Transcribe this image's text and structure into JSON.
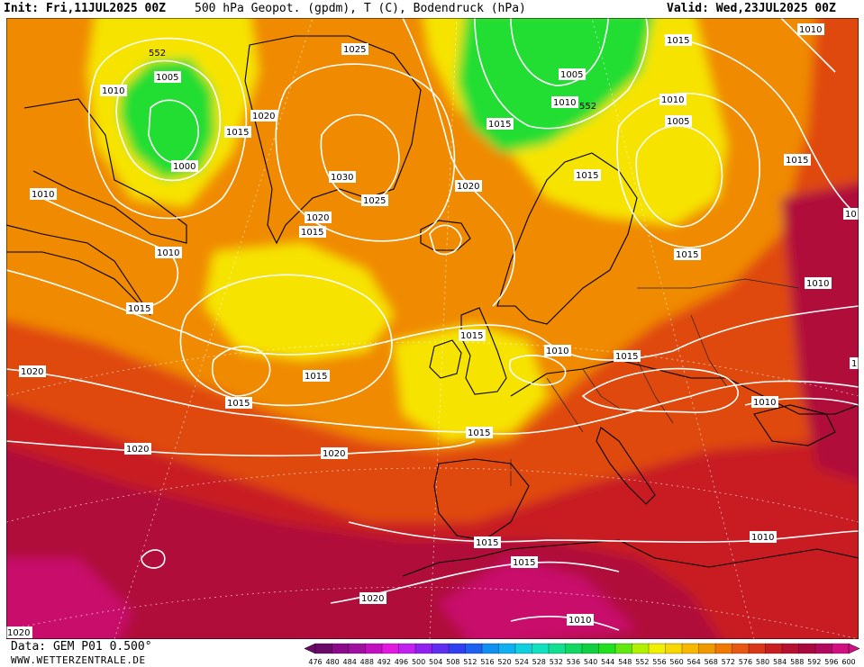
{
  "header": {
    "init": "Init: Fri,11JUL2025 00Z",
    "title": "500 hPa Geopot. (gpdm), T (C), Bodendruck (hPa)",
    "valid": "Valid: Wed,23JUL2025 00Z"
  },
  "footer": {
    "data_source": "Data: GEM P01 0.500°",
    "website": "WWW.WETTERZENTRALE.DE"
  },
  "colors": {
    "green": "#22dd33",
    "yellow": "#f6e400",
    "orange": "#f08a00",
    "red_orange": "#e04a10",
    "red": "#c81a24",
    "crimson": "#b0103a",
    "magenta": "#c8106a"
  },
  "isobars": [
    {
      "text": "1025"
    },
    {
      "text": "1015"
    },
    {
      "text": "1010"
    },
    {
      "text": "1010"
    },
    {
      "text": "1005"
    },
    {
      "text": "1020"
    },
    {
      "text": "1015"
    },
    {
      "text": "1000"
    },
    {
      "text": "1010"
    },
    {
      "text": "1030"
    },
    {
      "text": "1025"
    },
    {
      "text": "1020"
    },
    {
      "text": "1015"
    },
    {
      "text": "1010"
    },
    {
      "text": "1015"
    },
    {
      "text": "1005"
    },
    {
      "text": "1010"
    },
    {
      "text": "1015"
    },
    {
      "text": "1020"
    },
    {
      "text": "1010"
    },
    {
      "text": "1005"
    },
    {
      "text": "1015"
    },
    {
      "text": "1015"
    },
    {
      "text": "1010"
    },
    {
      "text": "1015"
    },
    {
      "text": "1010"
    },
    {
      "text": "1020"
    },
    {
      "text": "1015"
    },
    {
      "text": "1015"
    },
    {
      "text": "1015"
    },
    {
      "text": "1010"
    },
    {
      "text": "1020"
    },
    {
      "text": "1020"
    },
    {
      "text": "1015"
    },
    {
      "text": "1010"
    },
    {
      "text": "1020"
    },
    {
      "text": "1015"
    },
    {
      "text": "1010"
    },
    {
      "text": "1020"
    },
    {
      "text": "10"
    },
    {
      "text": "1"
    }
  ],
  "height_labels": [
    "552",
    "552"
  ],
  "colorbar": {
    "ticks": [
      "476",
      "480",
      "484",
      "488",
      "492",
      "496",
      "500",
      "504",
      "508",
      "512",
      "516",
      "520",
      "524",
      "528",
      "532",
      "536",
      "540",
      "544",
      "548",
      "552",
      "556",
      "560",
      "564",
      "568",
      "572",
      "576",
      "580",
      "584",
      "588",
      "592",
      "596",
      "600"
    ],
    "colors": [
      "#6a0a6a",
      "#8a0a8a",
      "#a010a0",
      "#c010c0",
      "#e018e0",
      "#c020f0",
      "#9020f0",
      "#6030f0",
      "#3040f0",
      "#2060f0",
      "#1090f0",
      "#10b0f0",
      "#10d0e0",
      "#10e0c0",
      "#10e090",
      "#10d860",
      "#10d040",
      "#20e020",
      "#60e810",
      "#b0f000",
      "#f0f000",
      "#f8d800",
      "#f8b800",
      "#f09800",
      "#f07800",
      "#e85810",
      "#d83818",
      "#c82020",
      "#b81030",
      "#a80a40",
      "#b00a60",
      "#d01080"
    ]
  }
}
